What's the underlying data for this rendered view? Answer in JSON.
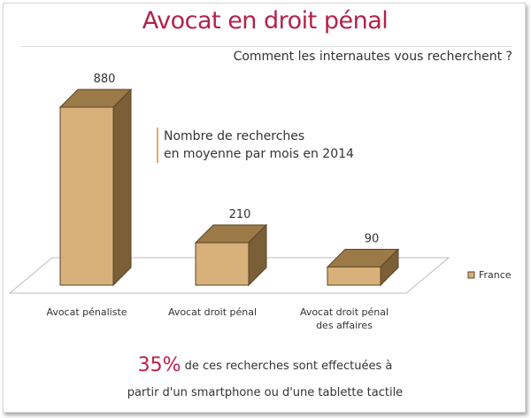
{
  "title": "Avocat en droit pénal",
  "subtitle": "Comment les internautes vous recherchent ?",
  "annotation": {
    "line1": "Nombre de recherches",
    "line2": "en moyenne par mois en 2014"
  },
  "footnote": {
    "percent": "35%",
    "line1": " de ces recherches sont effectuées à",
    "line2": "partir d'un smartphone ou d'une tablette tactile"
  },
  "colors": {
    "title": "#b4224a",
    "bar_front": "#d7b07a",
    "bar_top": "#9c7a48",
    "bar_side": "#7a5f37",
    "accent": "#c0204a"
  },
  "chart_data": {
    "type": "bar",
    "style": "3d",
    "categories": [
      "Avocat pénaliste",
      "Avocat droit pénal",
      "Avocat droit pénal des affaires"
    ],
    "category_lines": [
      [
        "Avocat pénaliste"
      ],
      [
        "Avocat droit pénal"
      ],
      [
        "Avocat droit pénal",
        "des affaires"
      ]
    ],
    "series": [
      {
        "name": "France",
        "values": [
          880,
          210,
          90
        ]
      }
    ],
    "data_labels": [
      "880",
      "210",
      "90"
    ],
    "ylim": [
      0,
      880
    ],
    "grid": false,
    "legend": "right"
  }
}
